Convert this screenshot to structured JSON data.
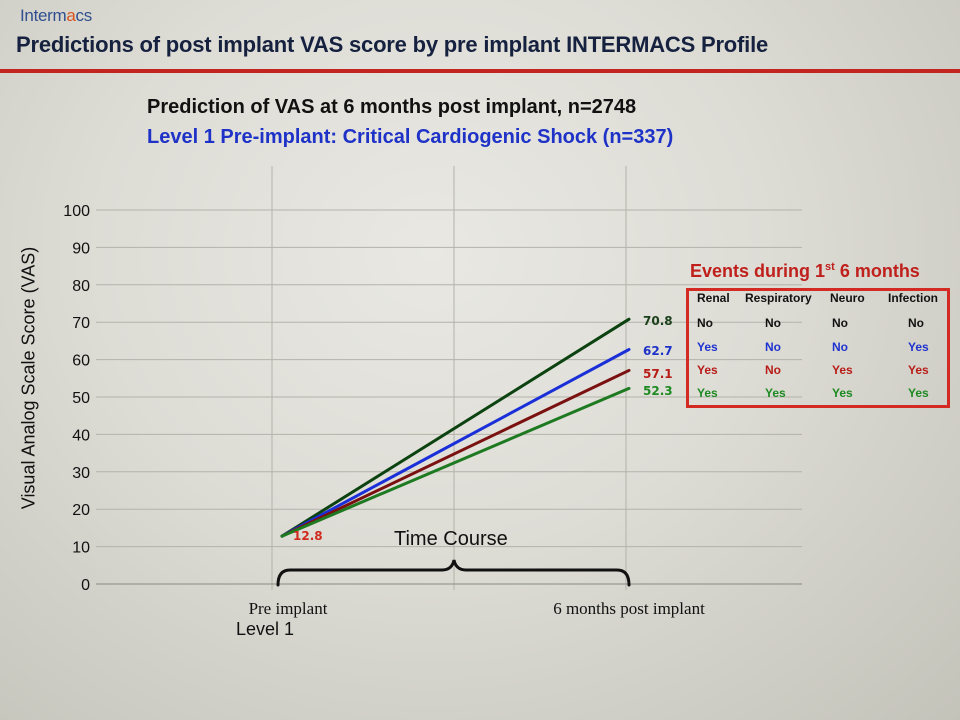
{
  "header": {
    "logo_text_a": "Interm",
    "logo_text_b": "a",
    "logo_text_c": "cs",
    "title": "Predictions of post implant VAS score by pre implant INTERMACS Profile",
    "rule_color": "#c42420"
  },
  "subtitle": {
    "line1": "Prediction of VAS at 6 months post implant, n=2748",
    "line2": "Level 1 Pre-implant:  Critical Cardiogenic Shock (n=337)"
  },
  "chart_data": {
    "type": "line",
    "ylabel": "Visual Analog Scale Score (VAS)",
    "ylim": [
      0,
      100
    ],
    "yticks": [
      "0",
      "10",
      "20",
      "30",
      "40",
      "50",
      "60",
      "70",
      "80",
      "90",
      "100"
    ],
    "categories": [
      "Pre implant",
      "6 months post implant"
    ],
    "grid": true,
    "start_label": "12.8",
    "series": [
      {
        "values": [
          12.8,
          70.8
        ],
        "end_label": "70.8",
        "color": "#0b4210",
        "label_color": "#1a3f1a"
      },
      {
        "values": [
          12.8,
          62.7
        ],
        "end_label": "62.7",
        "color": "#1a2fd8",
        "label_color": "#1e32c8"
      },
      {
        "values": [
          12.8,
          57.1
        ],
        "end_label": "57.1",
        "color": "#7a1010",
        "label_color": "#b81c18"
      },
      {
        "values": [
          12.8,
          52.3
        ],
        "end_label": "52.3",
        "color": "#1e7a20",
        "label_color": "#1e8a22"
      }
    ]
  },
  "annotations": {
    "level": "Level 1",
    "time_course": "Time Course"
  },
  "events": {
    "title": "Events during 1",
    "title_sup": "st",
    "title_rest": " 6 months",
    "headers": [
      "Renal",
      "Respiratory",
      "Neuro",
      "Infection"
    ],
    "rows": [
      [
        "No",
        "No",
        "No",
        "No"
      ],
      [
        "Yes",
        "No",
        "No",
        "Yes"
      ],
      [
        "Yes",
        "No",
        "Yes",
        "Yes"
      ],
      [
        "Yes",
        "Yes",
        "Yes",
        "Yes"
      ]
    ]
  }
}
